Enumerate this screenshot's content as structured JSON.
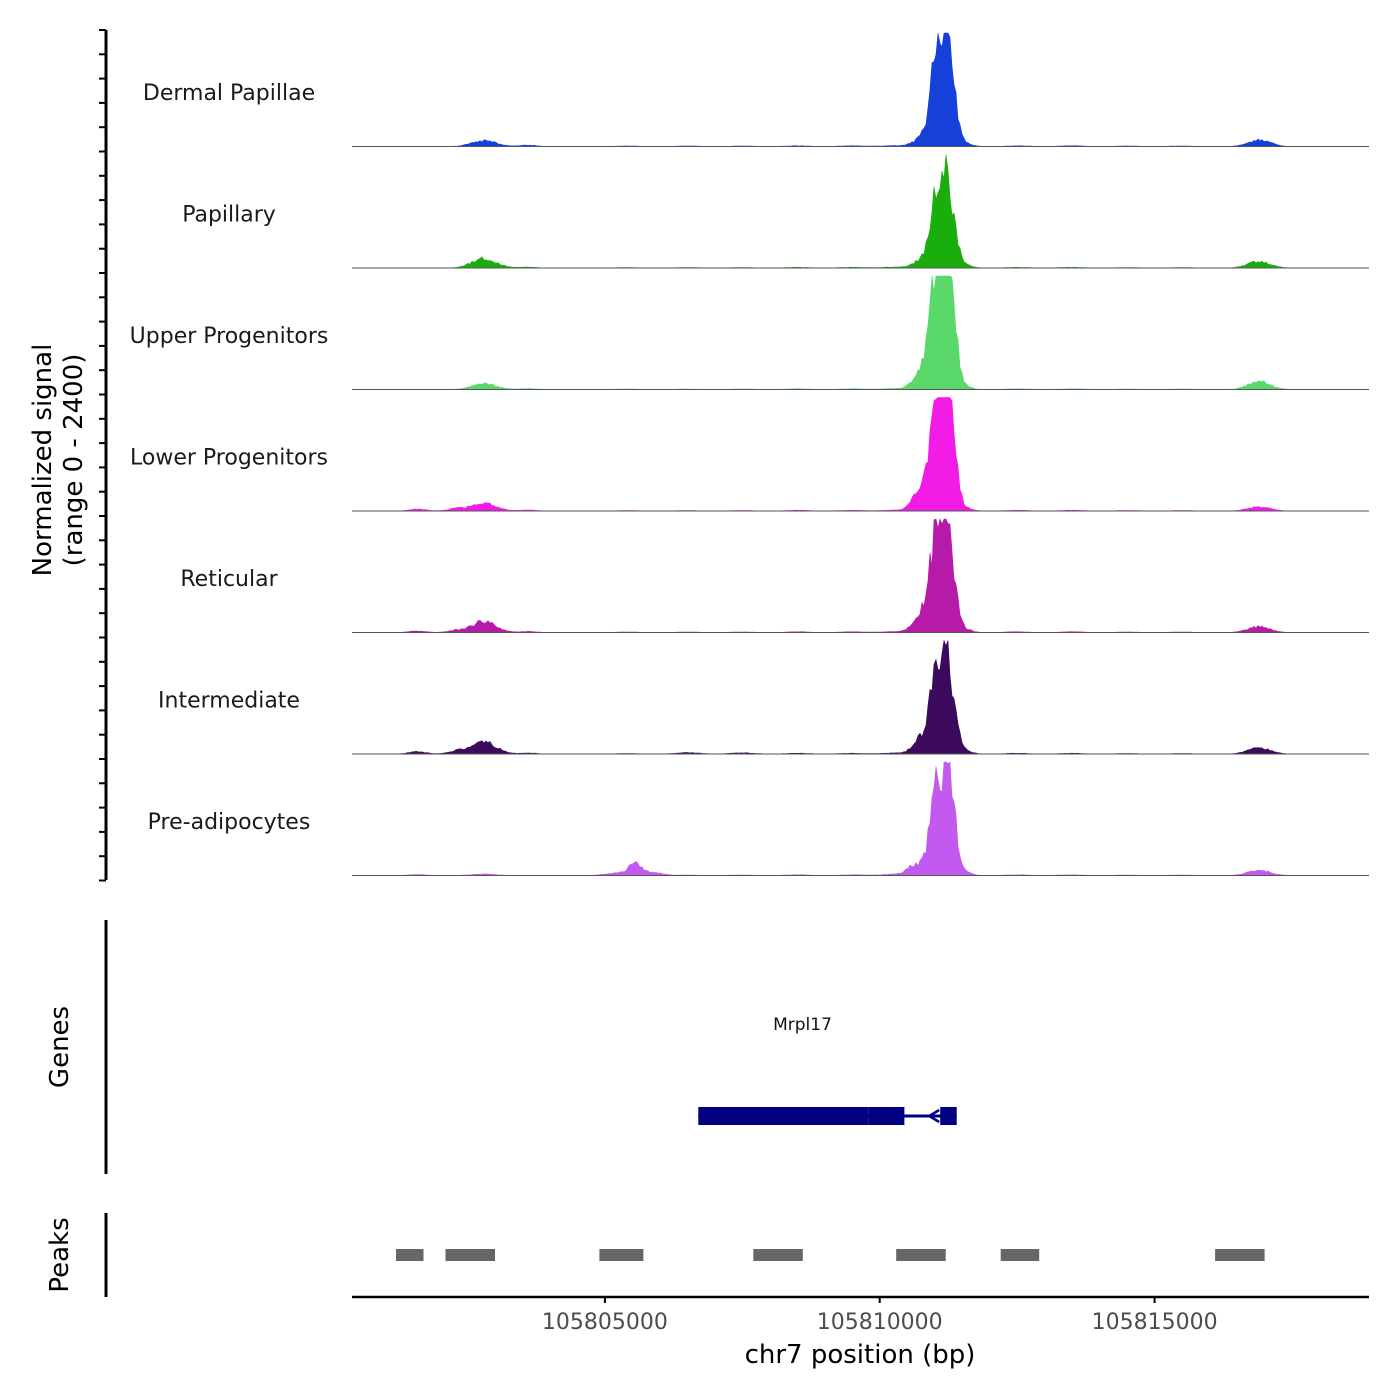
{
  "chart_data": {
    "type": "area",
    "title": "",
    "ylabel": "Normalized signal\n(range 0 - 2400)",
    "ylabel_lines": [
      "Normalized signal",
      "(range 0 - 2400)"
    ],
    "ylim": [
      0,
      2400
    ],
    "xlabel": "chr7 position (bp)",
    "xlim": [
      105800400,
      105818900
    ],
    "x_ticks": [
      105805000,
      105810000,
      105815000
    ],
    "x_tick_labels": [
      "105805000",
      "105810000",
      "105815000"
    ],
    "tracks": [
      {
        "name": "Dermal Papillae",
        "color": "#1541d9",
        "peaks": [
          [
            105802800,
            120,
            220
          ],
          [
            105803600,
            30,
            150
          ],
          [
            105805400,
            10,
            200
          ],
          [
            105806500,
            10,
            200
          ],
          [
            105807500,
            10,
            200
          ],
          [
            105808500,
            15,
            200
          ],
          [
            105809500,
            15,
            200
          ],
          [
            105810300,
            20,
            250
          ],
          [
            105810700,
            120,
            120
          ],
          [
            105810880,
            400,
            90
          ],
          [
            105811000,
            1700,
            70
          ],
          [
            105811120,
            1350,
            70
          ],
          [
            105811220,
            2050,
            50
          ],
          [
            105811320,
            1200,
            90
          ],
          [
            105811520,
            80,
            130
          ],
          [
            105812500,
            15,
            200
          ],
          [
            105813500,
            15,
            200
          ],
          [
            105814500,
            10,
            200
          ],
          [
            105815500,
            10,
            200
          ],
          [
            105816900,
            140,
            200
          ]
        ]
      },
      {
        "name": "Papillary",
        "color": "#1aad0e",
        "peaks": [
          [
            105802800,
            200,
            220
          ],
          [
            105803600,
            20,
            150
          ],
          [
            105805400,
            10,
            200
          ],
          [
            105806500,
            10,
            200
          ],
          [
            105807500,
            10,
            200
          ],
          [
            105808500,
            15,
            200
          ],
          [
            105809500,
            15,
            200
          ],
          [
            105810300,
            20,
            250
          ],
          [
            105810700,
            120,
            120
          ],
          [
            105810880,
            350,
            90
          ],
          [
            105811000,
            1400,
            70
          ],
          [
            105811120,
            1100,
            70
          ],
          [
            105811220,
            1500,
            50
          ],
          [
            105811320,
            1000,
            90
          ],
          [
            105811520,
            80,
            130
          ],
          [
            105812500,
            15,
            200
          ],
          [
            105813500,
            15,
            200
          ],
          [
            105814500,
            10,
            200
          ],
          [
            105815500,
            10,
            200
          ],
          [
            105816900,
            140,
            200
          ]
        ]
      },
      {
        "name": "Upper Progenitors",
        "color": "#5ad96a",
        "peaks": [
          [
            105802800,
            120,
            220
          ],
          [
            105803600,
            20,
            150
          ],
          [
            105805400,
            10,
            200
          ],
          [
            105806500,
            10,
            200
          ],
          [
            105807500,
            10,
            200
          ],
          [
            105808500,
            15,
            200
          ],
          [
            105809500,
            15,
            200
          ],
          [
            105810300,
            20,
            250
          ],
          [
            105810700,
            280,
            120
          ],
          [
            105810880,
            700,
            90
          ],
          [
            105811000,
            2000,
            70
          ],
          [
            105811120,
            1600,
            70
          ],
          [
            105811220,
            2350,
            50
          ],
          [
            105811320,
            1600,
            90
          ],
          [
            105811520,
            80,
            130
          ],
          [
            105812500,
            15,
            200
          ],
          [
            105813500,
            15,
            200
          ],
          [
            105814500,
            10,
            200
          ],
          [
            105815500,
            10,
            200
          ],
          [
            105816900,
            170,
            200
          ]
        ]
      },
      {
        "name": "Lower Progenitors",
        "color": "#f21ce6",
        "peaks": [
          [
            105801600,
            40,
            150
          ],
          [
            105802300,
            50,
            150
          ],
          [
            105802800,
            170,
            220
          ],
          [
            105803600,
            20,
            150
          ],
          [
            105805400,
            10,
            200
          ],
          [
            105806500,
            10,
            200
          ],
          [
            105807500,
            10,
            200
          ],
          [
            105808500,
            15,
            200
          ],
          [
            105809500,
            15,
            200
          ],
          [
            105810300,
            20,
            250
          ],
          [
            105810700,
            380,
            120
          ],
          [
            105810880,
            700,
            90
          ],
          [
            105811000,
            2100,
            70
          ],
          [
            105811120,
            1700,
            70
          ],
          [
            105811220,
            2350,
            50
          ],
          [
            105811320,
            1700,
            90
          ],
          [
            105811520,
            80,
            130
          ],
          [
            105812500,
            15,
            200
          ],
          [
            105813500,
            15,
            200
          ],
          [
            105814500,
            10,
            200
          ],
          [
            105815500,
            10,
            200
          ],
          [
            105816900,
            90,
            200
          ]
        ]
      },
      {
        "name": "Reticular",
        "color": "#b51aa8",
        "peaks": [
          [
            105801600,
            30,
            150
          ],
          [
            105802300,
            40,
            150
          ],
          [
            105802800,
            230,
            220
          ],
          [
            105803600,
            20,
            150
          ],
          [
            105805400,
            10,
            200
          ],
          [
            105806500,
            10,
            200
          ],
          [
            105807500,
            10,
            200
          ],
          [
            105808500,
            15,
            200
          ],
          [
            105809500,
            15,
            200
          ],
          [
            105810300,
            20,
            250
          ],
          [
            105810700,
            300,
            120
          ],
          [
            105810880,
            600,
            90
          ],
          [
            105811000,
            1600,
            70
          ],
          [
            105811120,
            1300,
            70
          ],
          [
            105811220,
            1700,
            50
          ],
          [
            105811320,
            1200,
            90
          ],
          [
            105811520,
            80,
            130
          ],
          [
            105812500,
            15,
            200
          ],
          [
            105813500,
            15,
            200
          ],
          [
            105814500,
            10,
            200
          ],
          [
            105815500,
            10,
            200
          ],
          [
            105816900,
            120,
            200
          ]
        ]
      },
      {
        "name": "Intermediate",
        "color": "#3b0a5c",
        "peaks": [
          [
            105801600,
            50,
            150
          ],
          [
            105802300,
            60,
            150
          ],
          [
            105802800,
            260,
            220
          ],
          [
            105803600,
            20,
            150
          ],
          [
            105805400,
            10,
            200
          ],
          [
            105806500,
            30,
            200
          ],
          [
            105807500,
            25,
            200
          ],
          [
            105808500,
            15,
            200
          ],
          [
            105809500,
            15,
            200
          ],
          [
            105810300,
            20,
            250
          ],
          [
            105810700,
            250,
            120
          ],
          [
            105810880,
            500,
            90
          ],
          [
            105811000,
            1400,
            70
          ],
          [
            105811120,
            1200,
            70
          ],
          [
            105811220,
            1800,
            50
          ],
          [
            105811320,
            1200,
            90
          ],
          [
            105811520,
            80,
            130
          ],
          [
            105812500,
            15,
            200
          ],
          [
            105813500,
            15,
            200
          ],
          [
            105814500,
            10,
            200
          ],
          [
            105815500,
            10,
            200
          ],
          [
            105816900,
            130,
            200
          ]
        ]
      },
      {
        "name": "Pre-adipocytes",
        "color": "#c35af0",
        "peaks": [
          [
            105801600,
            20,
            150
          ],
          [
            105802800,
            30,
            220
          ],
          [
            105805200,
            50,
            200
          ],
          [
            105805560,
            250,
            120
          ],
          [
            105805900,
            60,
            150
          ],
          [
            105806500,
            10,
            200
          ],
          [
            105807500,
            10,
            200
          ],
          [
            105808500,
            15,
            200
          ],
          [
            105809500,
            15,
            200
          ],
          [
            105810300,
            30,
            250
          ],
          [
            105810550,
            100,
            100
          ],
          [
            105810700,
            150,
            120
          ],
          [
            105810880,
            450,
            90
          ],
          [
            105811000,
            1500,
            70
          ],
          [
            105811120,
            1150,
            70
          ],
          [
            105811220,
            1750,
            50
          ],
          [
            105811320,
            1400,
            90
          ],
          [
            105811520,
            80,
            130
          ],
          [
            105812500,
            15,
            200
          ],
          [
            105813500,
            15,
            200
          ],
          [
            105814500,
            10,
            200
          ],
          [
            105815500,
            10,
            200
          ],
          [
            105816900,
            110,
            200
          ]
        ]
      }
    ],
    "genes": {
      "label": "Genes",
      "color": "#000080",
      "items": [
        {
          "name": "Mrpl17",
          "start": 105806700,
          "end": 105811400,
          "strand": "-",
          "exons": [
            [
              105806700,
              105809800
            ],
            [
              105809800,
              105810450
            ],
            [
              105811100,
              105811400
            ]
          ]
        }
      ]
    },
    "peaks_track": {
      "label": "Peaks",
      "color": "#666666",
      "regions": [
        [
          105801200,
          105801700
        ],
        [
          105802100,
          105803000
        ],
        [
          105804900,
          105805700
        ],
        [
          105807700,
          105808600
        ],
        [
          105810300,
          105811200
        ],
        [
          105812200,
          105812900
        ],
        [
          105816100,
          105817000
        ]
      ]
    }
  }
}
